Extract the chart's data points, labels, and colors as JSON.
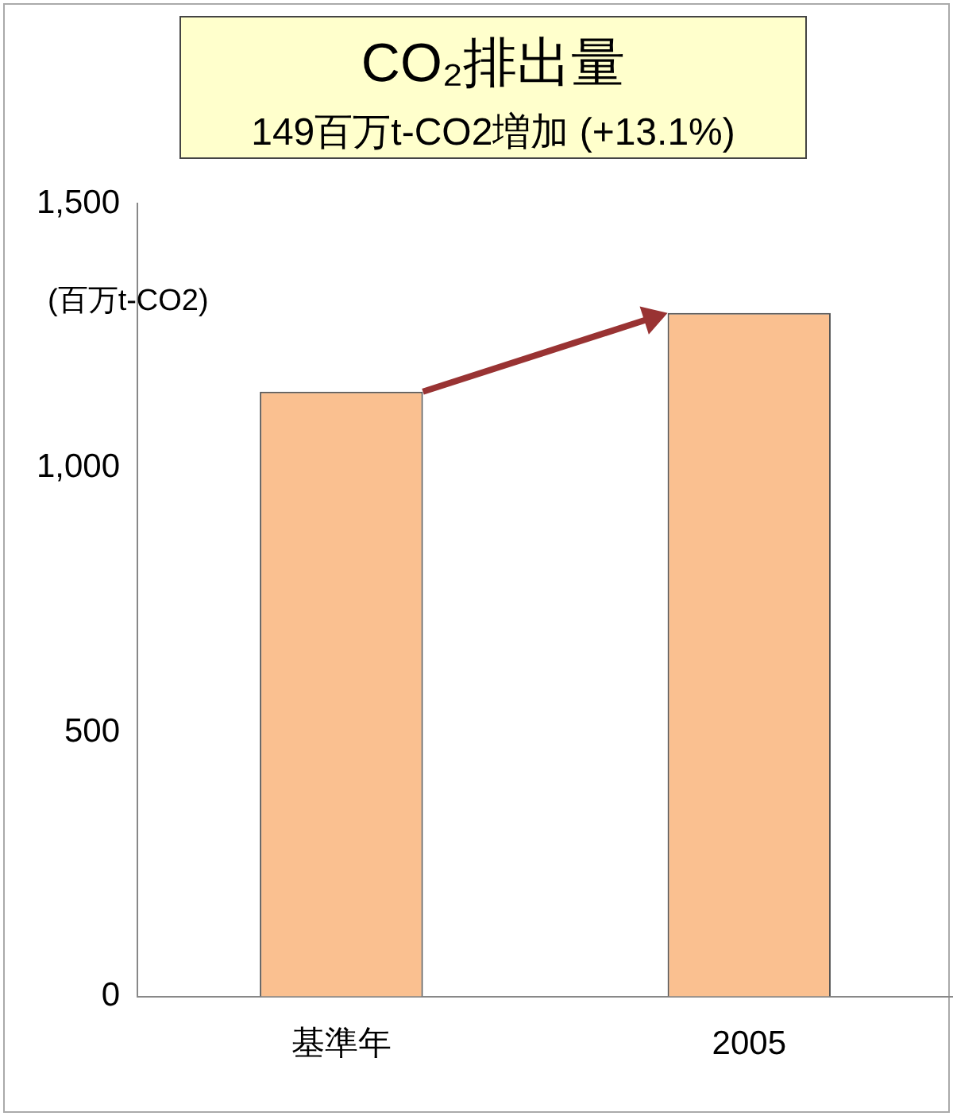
{
  "chart_data": {
    "type": "bar",
    "title": "CO₂排出量",
    "subtitle": "149百万t-CO2増加 (+13.1%)",
    "ylabel": "(百万t-CO2)",
    "categories": [
      "基準年",
      "2005"
    ],
    "values": [
      1144,
      1293
    ],
    "color": "#fac090",
    "ylim": [
      0,
      1500
    ],
    "yticks": [
      {
        "value": 0,
        "label": "0"
      },
      {
        "value": 500,
        "label": "500"
      },
      {
        "value": 1000,
        "label": "1,000"
      },
      {
        "value": 1500,
        "label": "1,500"
      }
    ],
    "grid": false,
    "legend": false
  }
}
